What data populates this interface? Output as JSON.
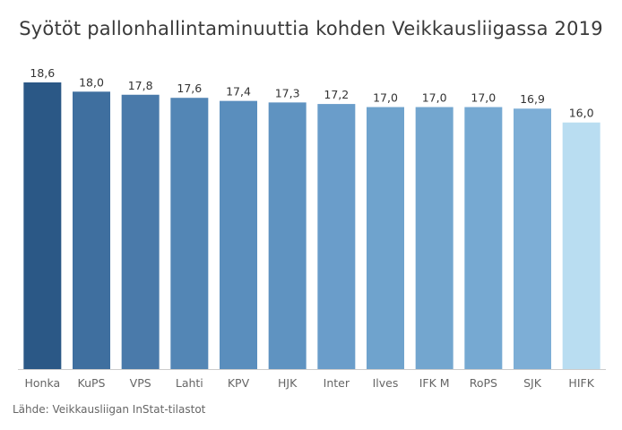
{
  "chart_data": {
    "type": "bar",
    "title": "Syötöt pallonhallintaminuuttia kohden Veikkausliigassa 2019",
    "categories": [
      "Honka",
      "KuPS",
      "VPS",
      "Lahti",
      "KPV",
      "HJK",
      "Inter",
      "Ilves",
      "IFK M",
      "RoPS",
      "SJK",
      "HIFK"
    ],
    "values": [
      18.6,
      18.0,
      17.8,
      17.6,
      17.4,
      17.3,
      17.2,
      17.0,
      17.0,
      17.0,
      16.9,
      16.0
    ],
    "value_labels": [
      "18,6",
      "18,0",
      "17,8",
      "17,6",
      "17,4",
      "17,3",
      "17,2",
      "17,0",
      "17,0",
      "17,0",
      "16,9",
      "16,0"
    ],
    "colors": [
      "#2b5886",
      "#3f6f9f",
      "#4a7aaa",
      "#5386b5",
      "#5a8ebd",
      "#5f93c1",
      "#6a9dca",
      "#6fa3cd",
      "#73a6cf",
      "#76a9d2",
      "#7daed6",
      "#b9ddf1"
    ],
    "xlabel": "",
    "ylabel": "",
    "ylim": [
      0,
      18.6
    ],
    "grid": false,
    "legend": "none"
  },
  "source": "Lähde: Veikkausliigan InStat-tilastot"
}
